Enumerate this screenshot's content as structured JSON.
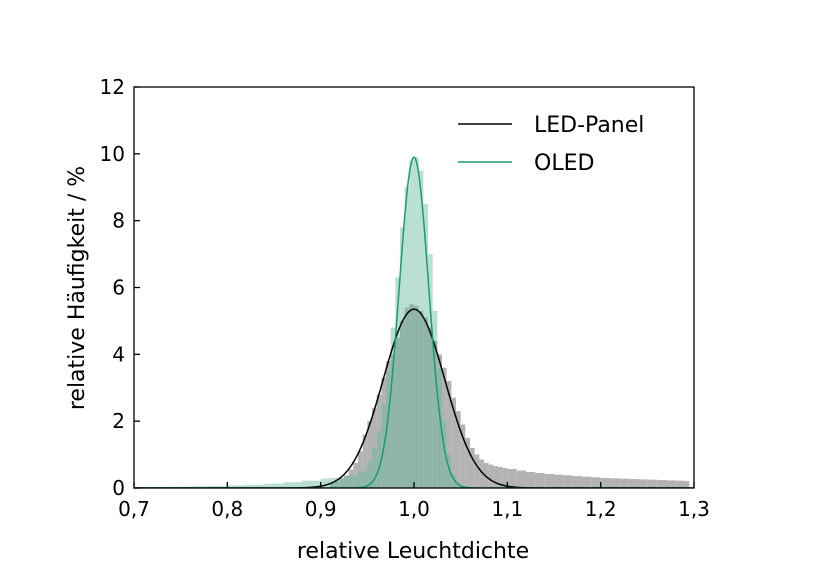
{
  "chart_data": {
    "type": "area",
    "title": "",
    "xlabel": "relative Leuchtdichte",
    "ylabel": "relative Häufigkeit / %",
    "xlim": [
      0.7,
      1.3
    ],
    "ylim": [
      0,
      12
    ],
    "xticks": [
      {
        "value": 0.7,
        "label": "0,7"
      },
      {
        "value": 0.8,
        "label": "0,8"
      },
      {
        "value": 0.9,
        "label": "0,9"
      },
      {
        "value": 1.0,
        "label": "1,0"
      },
      {
        "value": 1.1,
        "label": "1,1"
      },
      {
        "value": 1.2,
        "label": "1,2"
      },
      {
        "value": 1.3,
        "label": "1,3"
      }
    ],
    "yticks": [
      {
        "value": 0,
        "label": "0"
      },
      {
        "value": 2,
        "label": "2"
      },
      {
        "value": 4,
        "label": "4"
      },
      {
        "value": 6,
        "label": "6"
      },
      {
        "value": 8,
        "label": "8"
      },
      {
        "value": 10,
        "label": "10"
      },
      {
        "value": 12,
        "label": "12"
      }
    ],
    "grid": false,
    "legend_position": "top-right",
    "series": [
      {
        "name": "LED-Panel",
        "kind": "histogram",
        "color": "#999999",
        "fill_opacity": 0.75,
        "bin_width": 0.005,
        "x": [
          0.91,
          0.915,
          0.92,
          0.925,
          0.93,
          0.935,
          0.94,
          0.945,
          0.95,
          0.955,
          0.96,
          0.965,
          0.97,
          0.975,
          0.98,
          0.985,
          0.99,
          0.995,
          1.0,
          1.005,
          1.01,
          1.015,
          1.02,
          1.025,
          1.03,
          1.035,
          1.04,
          1.045,
          1.05,
          1.055,
          1.06,
          1.065,
          1.07,
          1.075,
          1.08,
          1.085,
          1.09,
          1.095,
          1.1,
          1.11,
          1.12,
          1.13,
          1.14,
          1.15,
          1.16,
          1.17,
          1.18,
          1.19,
          1.2,
          1.21,
          1.22,
          1.23,
          1.24,
          1.25,
          1.26,
          1.27,
          1.28,
          1.29
        ],
        "y": [
          0.15,
          0.2,
          0.28,
          0.38,
          0.55,
          0.75,
          1.1,
          1.6,
          2.0,
          2.4,
          2.8,
          3.3,
          3.8,
          4.0,
          4.5,
          5.0,
          5.4,
          5.5,
          5.45,
          5.3,
          5.1,
          4.8,
          4.4,
          4.0,
          3.6,
          3.2,
          2.7,
          2.3,
          1.9,
          1.5,
          1.2,
          1.0,
          0.85,
          0.75,
          0.7,
          0.66,
          0.63,
          0.6,
          0.57,
          0.52,
          0.48,
          0.45,
          0.42,
          0.4,
          0.38,
          0.36,
          0.34,
          0.32,
          0.3,
          0.29,
          0.28,
          0.27,
          0.26,
          0.25,
          0.24,
          0.23,
          0.22,
          0.21
        ]
      },
      {
        "name": "OLED",
        "kind": "histogram",
        "color": "#64b899",
        "fill_opacity": 0.45,
        "bin_width": 0.005,
        "x": [
          0.7,
          0.72,
          0.74,
          0.76,
          0.78,
          0.8,
          0.82,
          0.84,
          0.86,
          0.88,
          0.9,
          0.91,
          0.92,
          0.93,
          0.94,
          0.95,
          0.955,
          0.96,
          0.965,
          0.97,
          0.975,
          0.98,
          0.985,
          0.99,
          0.995,
          1.0,
          1.005,
          1.01,
          1.015,
          1.02,
          1.025,
          1.03,
          1.035,
          1.04,
          1.045,
          1.05
        ],
        "y": [
          0.02,
          0.03,
          0.04,
          0.05,
          0.06,
          0.08,
          0.1,
          0.13,
          0.17,
          0.22,
          0.28,
          0.3,
          0.33,
          0.38,
          0.5,
          0.8,
          1.2,
          1.7,
          2.5,
          3.5,
          4.8,
          6.3,
          7.8,
          9.0,
          9.8,
          9.9,
          9.5,
          8.5,
          7.0,
          5.3,
          3.6,
          2.0,
          1.0,
          0.4,
          0.15,
          0.05
        ]
      },
      {
        "name": "LED-Panel",
        "kind": "line",
        "color": "#000000",
        "fit": {
          "type": "gaussian",
          "amplitude": 5.35,
          "mean": 1.0,
          "sigma": 0.033
        }
      },
      {
        "name": "OLED",
        "kind": "line",
        "color": "#1a9a7a",
        "fit": {
          "type": "gaussian",
          "amplitude": 9.9,
          "mean": 1.0,
          "sigma": 0.0158
        }
      }
    ],
    "legend": [
      {
        "label": "LED-Panel",
        "color": "#000000"
      },
      {
        "label": "OLED",
        "color": "#1a9a7a"
      }
    ]
  }
}
